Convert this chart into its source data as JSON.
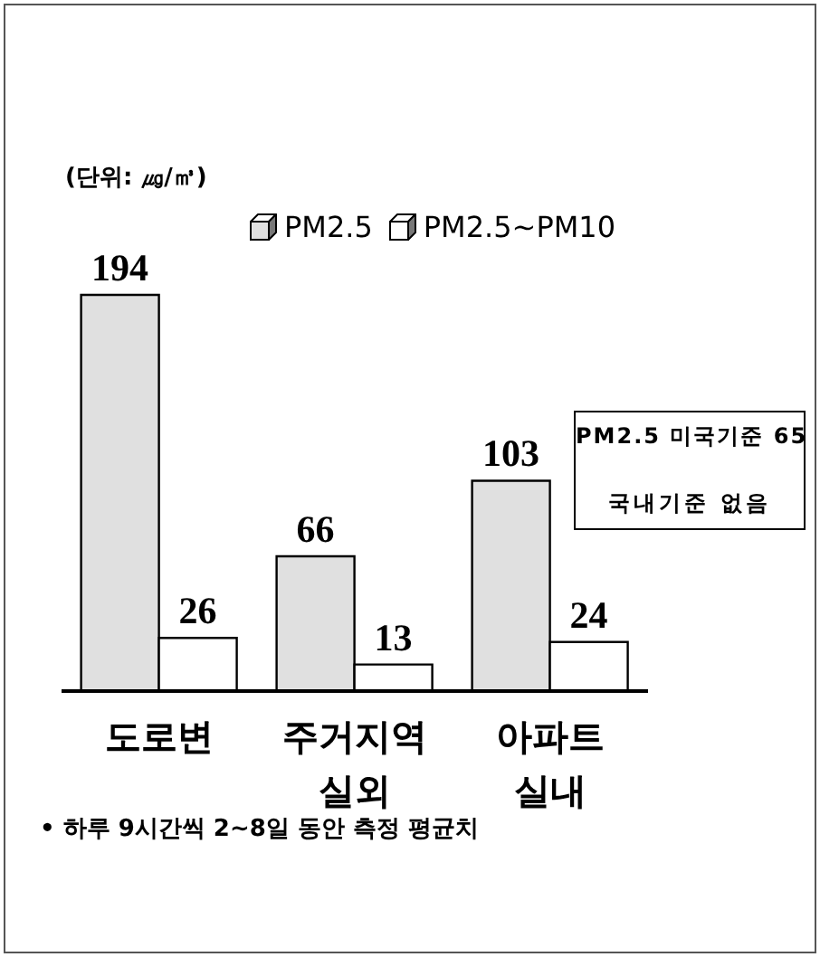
{
  "chart_data": {
    "type": "bar",
    "categories": [
      "도로변",
      "주거지역 실외",
      "아파트 실내"
    ],
    "series": [
      {
        "name": "PM2.5",
        "color": "#e0e0e0",
        "values": [
          194,
          66,
          103
        ]
      },
      {
        "name": "PM2.5~PM10",
        "color": "#ffffff",
        "values": [
          26,
          13,
          24
        ]
      }
    ],
    "data_labels": true,
    "legend": "top",
    "annotations": [
      "(단위: ㎍/㎥)",
      "PM2.5 미국기준 65",
      "국내기준 없음",
      "• 하루 9시간씩 2~8일 동안 측정 평균치"
    ]
  }
}
